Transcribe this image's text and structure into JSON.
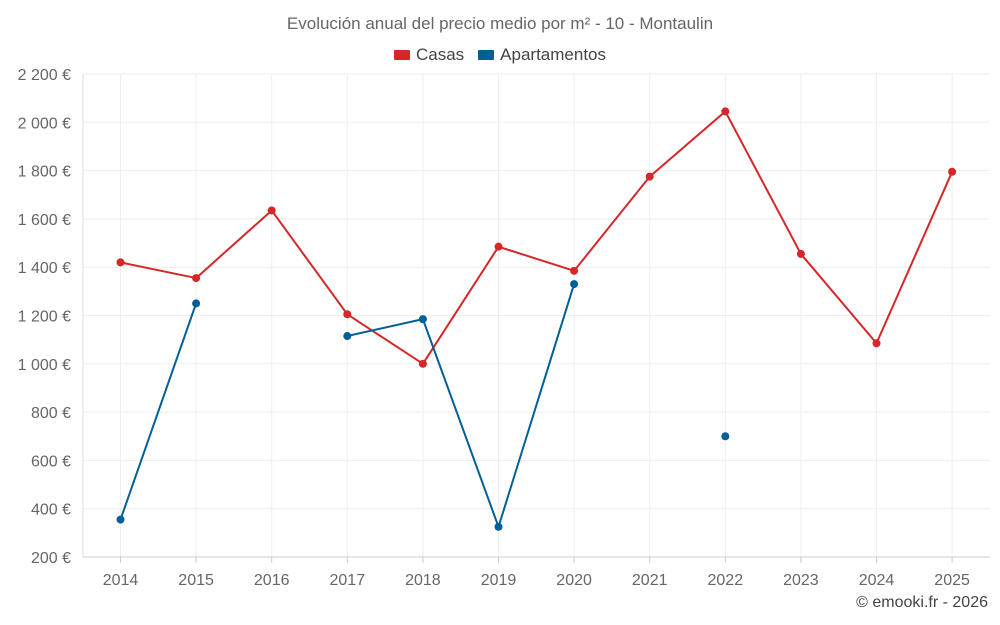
{
  "chart_data": {
    "type": "line",
    "title": "Evolución anual del precio medio por m² - 10 - Montaulin",
    "xlabel": "",
    "ylabel": "",
    "categories": [
      "2014",
      "2015",
      "2016",
      "2017",
      "2018",
      "2019",
      "2020",
      "2021",
      "2022",
      "2023",
      "2024",
      "2025"
    ],
    "ylim": [
      200,
      2200
    ],
    "yticks": [
      200,
      400,
      600,
      800,
      1000,
      1200,
      1400,
      1600,
      1800,
      2000,
      2200
    ],
    "ytick_labels": [
      "200 €",
      "400 €",
      "600 €",
      "800 €",
      "1 000 €",
      "1 200 €",
      "1 400 €",
      "1 600 €",
      "1 800 €",
      "2 000 €",
      "2 200 €"
    ],
    "grid": true,
    "legend_position": "top-center",
    "series": [
      {
        "name": "Casas",
        "color": "#d62728",
        "values": [
          1420,
          1355,
          1635,
          1205,
          1000,
          1485,
          1385,
          1775,
          2045,
          1455,
          1085,
          1795
        ]
      },
      {
        "name": "Apartamentos",
        "color": "#005f96",
        "values": [
          355,
          1250,
          null,
          1115,
          1185,
          325,
          1330,
          null,
          700,
          null,
          null,
          null
        ]
      }
    ]
  },
  "credit": "© emooki.fr - 2026"
}
